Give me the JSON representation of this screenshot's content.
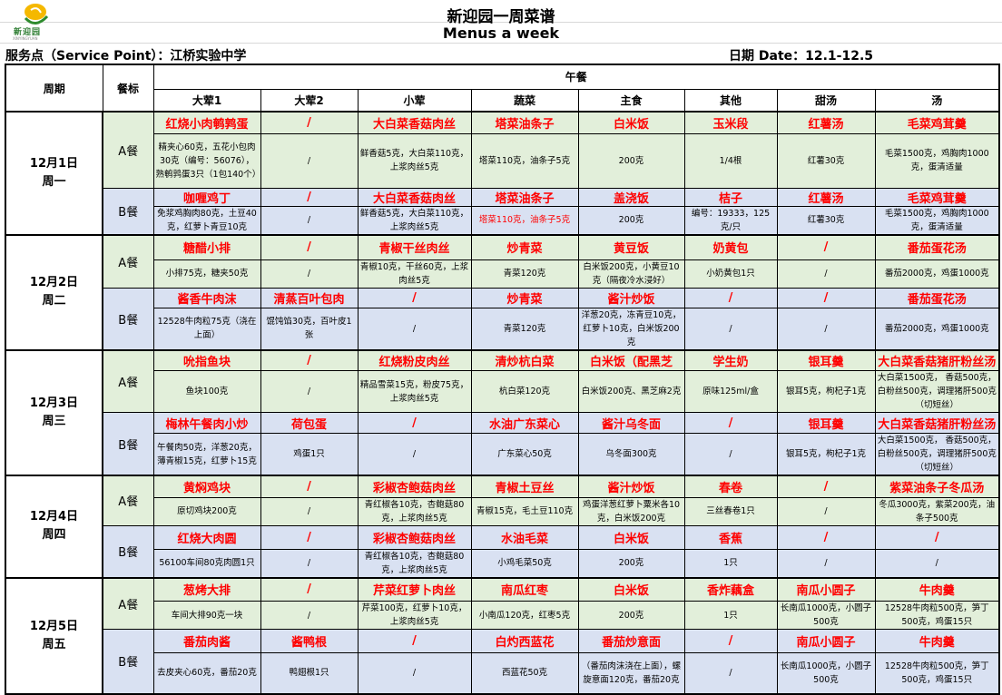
{
  "header": {
    "logo_text": "新迎园",
    "logo_sub": "XINYINGYUAN",
    "title": "新迎园一周菜谱",
    "subtitle": "Menus a week",
    "service_point": "服务点（Service Point）：江桥实验中学",
    "date_range": "日期 Date：12.1-12.5"
  },
  "columns": {
    "period": "周期",
    "meal_type": "餐标",
    "lunch": "午餐",
    "dishes": [
      "大荤1",
      "大荤2",
      "小荤",
      "蔬菜",
      "主食",
      "其他",
      "甜汤",
      "汤"
    ]
  },
  "colors": {
    "a_meal_bg": "#e2efda",
    "b_meal_bg": "#d9e1f2",
    "dish_name": "#ff0000"
  },
  "days": [
    {
      "date": "12月1日",
      "weekday": "周一",
      "meals": [
        {
          "label": "A餐",
          "names": [
            "红烧小肉鹌鹑蛋",
            "/",
            "大白菜香菇肉丝",
            "塔菜油条子",
            "白米饭",
            "玉米段",
            "红薯汤",
            "毛菜鸡茸羹"
          ],
          "details": [
            "精夹心60克，五花小包肉30克（编号：56076），熟鹌鹑蛋3只（1包140个）",
            "/",
            "鲜香菇5克，大白菜110克，上浆肉丝5克",
            "塔菜110克，油条子5克",
            "200克",
            "1/4根",
            "红薯30克",
            "毛菜1500克，鸡胸肉1000克，蛋清适量"
          ]
        },
        {
          "label": "B餐",
          "names": [
            "咖喱鸡丁",
            "/",
            "大白菜香菇肉丝",
            "塔菜油条子",
            "盖浇饭",
            "桔子",
            "红薯汤",
            "毛菜鸡茸羹"
          ],
          "details": [
            "免浆鸡胸肉80克，土豆40克，红萝卜青豆10克",
            "/",
            "鲜香菇5克，大白菜110克，上浆肉丝5克",
            "塔菜110克，油条子5克",
            "200克",
            "编号：19333，125克/只",
            "红薯30克",
            "毛菜1500克，鸡胸肉1000克，蛋清适量"
          ]
        }
      ]
    },
    {
      "date": "12月2日",
      "weekday": "周二",
      "meals": [
        {
          "label": "A餐",
          "names": [
            "糖醋小排",
            "/",
            "青椒干丝肉丝",
            "炒青菜",
            "黄豆饭",
            "奶黄包",
            "/",
            "番茄蛋花汤"
          ],
          "details": [
            "小排75克，糖夹50克",
            "/",
            "青椒10克，干丝60克，上浆肉丝5克",
            "青菜120克",
            "白米饭200克，小黄豆10克（隔夜冷水浸好）",
            "小奶黄包1只",
            "/",
            "番茄2000克，鸡蛋1000克"
          ]
        },
        {
          "label": "B餐",
          "names": [
            "酱香牛肉沫",
            "清蒸百叶包肉",
            "/",
            "炒青菜",
            "酱汁炒饭",
            "/",
            "/",
            "番茄蛋花汤"
          ],
          "details": [
            "12528牛肉粒75克（浇在上面）",
            "馄饨馅30克，百叶皮1张",
            "/",
            "青菜120克",
            "洋葱20克，冻青豆10克，红萝卜10克，白米饭200克",
            "/",
            "/",
            "番茄2000克，鸡蛋1000克"
          ]
        }
      ]
    },
    {
      "date": "12月3日",
      "weekday": "周三",
      "meals": [
        {
          "label": "A餐",
          "names": [
            "吮指鱼块",
            "/",
            "红烧粉皮肉丝",
            "清炒杭白菜",
            "白米饭（配黑芝",
            "学生奶",
            "银耳羹",
            "大白菜香菇猪肝粉丝汤"
          ],
          "details": [
            "鱼块100克",
            "/",
            "精品雪菜15克，粉皮75克，上浆肉丝5克",
            "杭白菜120克",
            "白米饭200克、黑芝麻2克",
            "原味125ml/盒",
            "银耳5克，枸杞子1克",
            "大白菜1500克， 香菇500克，白粉丝500克，调理猪肝500克（切短丝）"
          ]
        },
        {
          "label": "B餐",
          "names": [
            "梅林午餐肉小炒",
            "荷包蛋",
            "/",
            "水油广东菜心",
            "酱汁乌冬面",
            "/",
            "银耳羹",
            "大白菜香菇猪肝粉丝汤"
          ],
          "details": [
            "午餐肉50克，洋葱20克，薄青椒15克，红萝卜15克",
            "鸡蛋1只",
            "/",
            "广东菜心50克",
            "乌冬面300克",
            "/",
            "银耳5克，枸杞子1克",
            "大白菜1500克， 香菇500克，白粉丝500克，调理猪肝500克（切短丝）"
          ]
        }
      ]
    },
    {
      "date": "12月4日",
      "weekday": "周四",
      "meals": [
        {
          "label": "A餐",
          "names": [
            "黄焖鸡块",
            "/",
            "彩椒杏鲍菇肉丝",
            "青椒土豆丝",
            "酱汁炒饭",
            "春卷",
            "/",
            "紫菜油条子冬瓜汤"
          ],
          "details": [
            "原切鸡块200克",
            "/",
            "青红椒各10克，杏鲍菇80克，上浆肉丝5克",
            "青椒15克，毛土豆110克",
            "鸡蛋洋葱红萝卜粟米各10克，白米饭200克",
            "三丝春卷1只",
            "/",
            "冬瓜3000克，紫菜200克，油条子500克"
          ]
        },
        {
          "label": "B餐",
          "names": [
            "红烧大肉圆",
            "/",
            "彩椒杏鲍菇肉丝",
            "水油毛菜",
            "白米饭",
            "香蕉",
            "/",
            "/"
          ],
          "details": [
            "56100车间80克肉圆1只",
            "/",
            "青红椒各10克，杏鲍菇80克，上浆肉丝5克",
            "小鸡毛菜50克",
            "200克",
            "1只",
            "/",
            "/"
          ]
        }
      ]
    },
    {
      "date": "12月5日",
      "weekday": "周五",
      "meals": [
        {
          "label": "A餐",
          "names": [
            "葱烤大排",
            "/",
            "芹菜红萝卜肉丝",
            "南瓜红枣",
            "白米饭",
            "香炸藕盒",
            "南瓜小圆子",
            "牛肉羹"
          ],
          "details": [
            "车间大排90克一块",
            "/",
            "芹菜100克，红萝卜10克，上浆肉丝5克",
            "小南瓜120克，红枣5克",
            "200克",
            "1只",
            "长南瓜1000克，小圆子500克",
            "12528牛肉粒500克，笋丁500克，鸡蛋15只"
          ]
        },
        {
          "label": "B餐",
          "names": [
            "番茄肉酱",
            "酱鸭根",
            "/",
            "白灼西蓝花",
            "番茄炒意面",
            "/",
            "南瓜小圆子",
            "牛肉羹"
          ],
          "details": [
            "去皮夹心60克，番茄20克",
            "鸭翅根1只",
            "/",
            "西蓝花50克",
            "（番茄肉沫浇在上面），螺旋意面120克，番茄20克",
            "/",
            "长南瓜1000克，小圆子500克",
            "12528牛肉粒500克，笋丁500克，鸡蛋15只"
          ]
        }
      ]
    }
  ]
}
